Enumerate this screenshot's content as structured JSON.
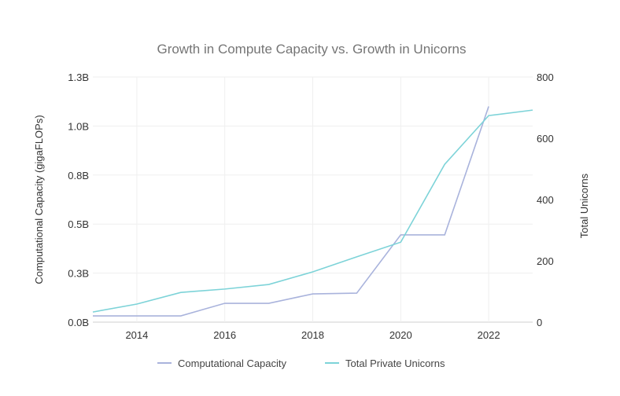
{
  "chart_data": {
    "type": "line",
    "title": "Growth in Compute Capacity vs. Growth in Unicorns",
    "xlabel": "",
    "ylabel": "Computational Capacity (gigaFLOPs)",
    "y2label": "Total Unicorns",
    "x": [
      2013,
      2014,
      2015,
      2016,
      2017,
      2018,
      2019,
      2020,
      2021,
      2022,
      2023
    ],
    "xlim": [
      2013,
      2023
    ],
    "x_ticks": [
      "2014",
      "2016",
      "2018",
      "2020",
      "2022"
    ],
    "ylim": [
      0,
      1.25
    ],
    "y_ticks": [
      "0.0B",
      "0.3B",
      "0.5B",
      "0.8B",
      "1.0B",
      "1.3B"
    ],
    "y2lim": [
      0,
      800
    ],
    "y2_ticks": [
      "0",
      "200",
      "400",
      "600",
      "800"
    ],
    "grid": true,
    "legend_position": "bottom",
    "series": [
      {
        "name": "Computational Capacity",
        "axis": "left",
        "unit": "billion gigaFLOPs",
        "color": "#a9b3dc",
        "values": [
          0.032,
          0.032,
          0.032,
          0.096,
          0.096,
          0.144,
          0.148,
          0.445,
          0.445,
          1.1,
          null
        ]
      },
      {
        "name": "Total Private Unicorns",
        "axis": "right",
        "color": "#7dd3d8",
        "values": [
          33,
          59,
          97,
          108,
          123,
          164,
          213,
          261,
          515,
          674,
          692
        ]
      }
    ]
  }
}
